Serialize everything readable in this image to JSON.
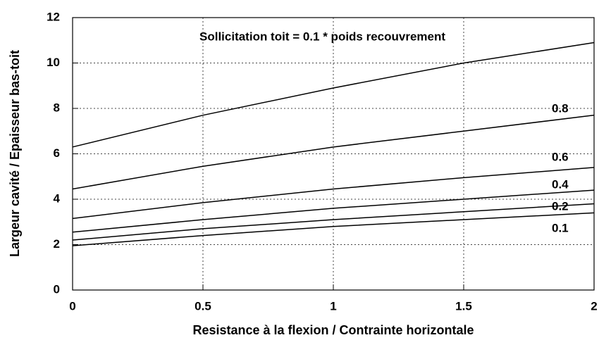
{
  "chart_data": {
    "type": "line",
    "annotation": "Sollicitation toit = 0.1 * poids recouvrement",
    "x_label": "Resistance à la flexion / Contrainte horizontale",
    "y_label": "Largeur cavité / Epaisseur bas-toit",
    "x": [
      0,
      0.5,
      1,
      1.5,
      2
    ],
    "series": [
      {
        "color": "#000000",
        "values": [
          6.3,
          7.7,
          8.9,
          10.0,
          10.9
        ]
      },
      {
        "name": "0.8",
        "color": "#000000",
        "values": [
          4.45,
          5.45,
          6.3,
          7.0,
          7.7
        ]
      },
      {
        "name": "0.6",
        "color": "#000000",
        "values": [
          3.15,
          3.85,
          4.45,
          4.95,
          5.4
        ]
      },
      {
        "name": "0.4",
        "color": "#000000",
        "values": [
          2.55,
          3.1,
          3.6,
          4.0,
          4.4
        ]
      },
      {
        "name": "0.2",
        "color": "#000000",
        "values": [
          2.2,
          2.7,
          3.1,
          3.45,
          3.8
        ]
      },
      {
        "name": "0.1",
        "color": "#000000",
        "values": [
          1.95,
          2.4,
          2.8,
          3.1,
          3.4
        ]
      }
    ],
    "xlim": [
      0,
      2
    ],
    "xticks": [
      0,
      0.5,
      1,
      1.5,
      2
    ],
    "ylim": [
      0,
      12
    ],
    "yticks": [
      0,
      2,
      4,
      6,
      8,
      10,
      12
    ],
    "grid": true
  }
}
